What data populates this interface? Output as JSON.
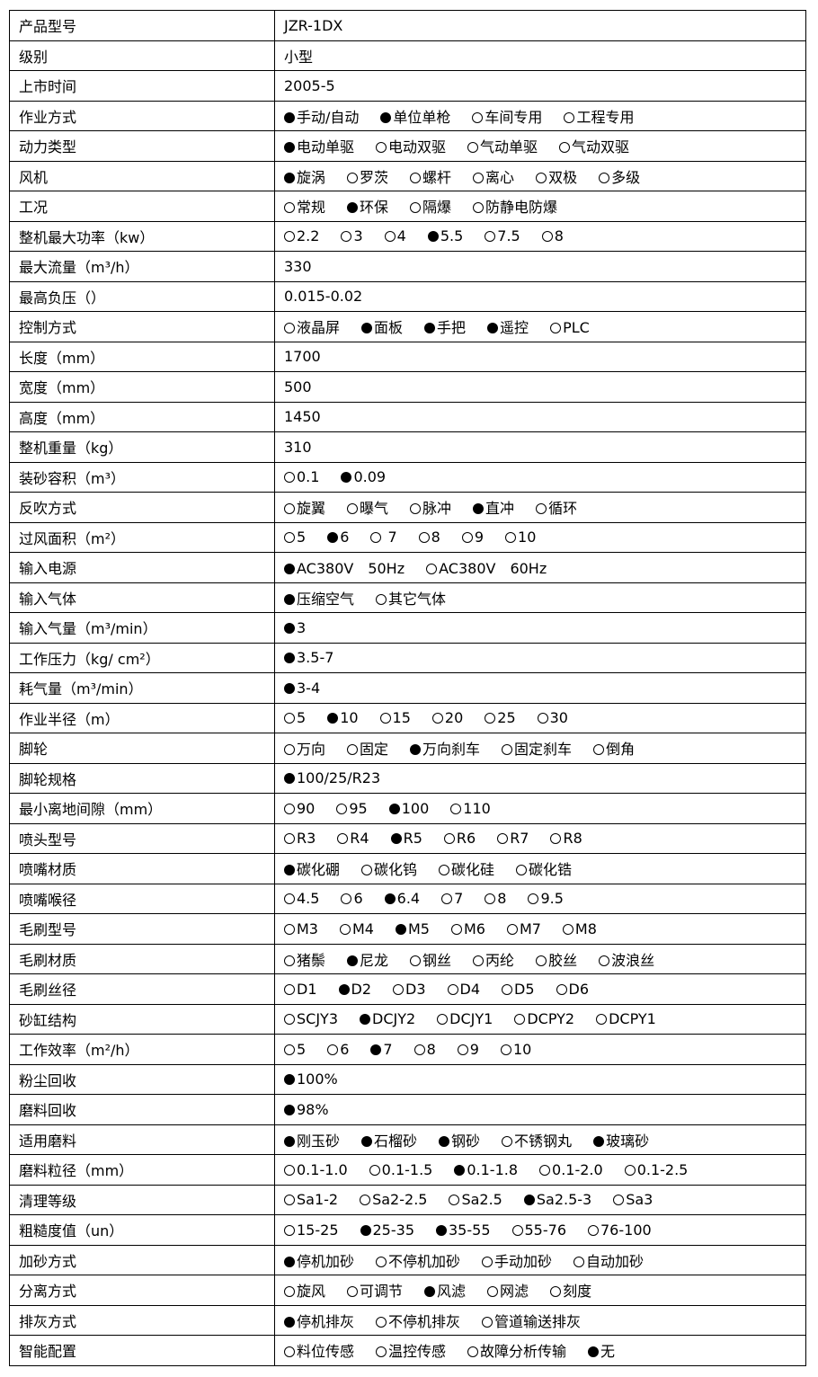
{
  "rows": [
    {
      "label": "产品型号",
      "value": "JZR-1DX"
    },
    {
      "label": "级别",
      "value": "小型"
    },
    {
      "label": "上市时间",
      "value": "2005-5"
    },
    {
      "label": "作业方式",
      "options": [
        {
          "t": "手动/自动",
          "on": true
        },
        {
          "t": "单位单枪",
          "on": true
        },
        {
          "t": "车间专用",
          "on": false
        },
        {
          "t": "工程专用",
          "on": false
        }
      ]
    },
    {
      "label": "动力类型",
      "options": [
        {
          "t": "电动单驱",
          "on": true
        },
        {
          "t": "电动双驱",
          "on": false
        },
        {
          "t": "气动单驱",
          "on": false
        },
        {
          "t": "气动双驱",
          "on": false
        }
      ]
    },
    {
      "label": "风机",
      "options": [
        {
          "t": "旋涡",
          "on": true
        },
        {
          "t": "罗茨",
          "on": false
        },
        {
          "t": "螺杆",
          "on": false
        },
        {
          "t": "离心",
          "on": false
        },
        {
          "t": "双极",
          "on": false
        },
        {
          "t": "多级",
          "on": false
        }
      ]
    },
    {
      "label": "工况",
      "options": [
        {
          "t": "常规",
          "on": false
        },
        {
          "t": "环保",
          "on": true
        },
        {
          "t": "隔爆",
          "on": false
        },
        {
          "t": "防静电防爆",
          "on": false
        }
      ]
    },
    {
      "label": "整机最大功率（kw）",
      "options": [
        {
          "t": "2.2",
          "on": false
        },
        {
          "t": "3",
          "on": false
        },
        {
          "t": "4",
          "on": false
        },
        {
          "t": "5.5",
          "on": true
        },
        {
          "t": "7.5",
          "on": false
        },
        {
          "t": "8",
          "on": false
        }
      ]
    },
    {
      "label": "最大流量（m³/h）",
      "value": "330"
    },
    {
      "label": "最高负压（）",
      "value": "0.015-0.02"
    },
    {
      "label": "控制方式",
      "options": [
        {
          "t": "液晶屏",
          "on": false
        },
        {
          "t": "面板",
          "on": true
        },
        {
          "t": "手把",
          "on": true
        },
        {
          "t": "遥控",
          "on": true
        },
        {
          "t": "PLC",
          "on": false
        }
      ]
    },
    {
      "label": "长度（mm）",
      "value": "1700"
    },
    {
      "label": "宽度（mm）",
      "value": "500"
    },
    {
      "label": "高度（mm）",
      "value": "1450"
    },
    {
      "label": "整机重量（kg）",
      "value": "310"
    },
    {
      "label": "装砂容积（m³）",
      "options": [
        {
          "t": "0.1",
          "on": false
        },
        {
          "t": "0.09",
          "on": true
        }
      ]
    },
    {
      "label": "反吹方式",
      "options": [
        {
          "t": "旋翼",
          "on": false
        },
        {
          "t": "曝气",
          "on": false
        },
        {
          "t": "脉冲",
          "on": false
        },
        {
          "t": "直冲",
          "on": true
        },
        {
          "t": "循环",
          "on": false
        }
      ]
    },
    {
      "label": "过风面积（m²）",
      "options": [
        {
          "t": "5",
          "on": false
        },
        {
          "t": "6",
          "on": true
        },
        {
          "t": " 7",
          "on": false
        },
        {
          "t": "8",
          "on": false
        },
        {
          "t": "9",
          "on": false
        },
        {
          "t": "10",
          "on": false
        }
      ]
    },
    {
      "label": "输入电源",
      "options": [
        {
          "t": "AC380V　50Hz",
          "on": true
        },
        {
          "t": "AC380V　60Hz",
          "on": false
        }
      ]
    },
    {
      "label": "输入气体",
      "options": [
        {
          "t": "压缩空气",
          "on": true
        },
        {
          "t": "其它气体",
          "on": false
        }
      ]
    },
    {
      "label": "输入气量（m³/min）",
      "options": [
        {
          "t": "3",
          "on": true
        }
      ]
    },
    {
      "label": "工作压力（kg/ cm²）",
      "options": [
        {
          "t": "3.5-7",
          "on": true
        }
      ]
    },
    {
      "label": "耗气量（m³/min）",
      "options": [
        {
          "t": "3-4",
          "on": true
        }
      ]
    },
    {
      "label": "作业半径（m）",
      "options": [
        {
          "t": "5",
          "on": false
        },
        {
          "t": "10",
          "on": true
        },
        {
          "t": "15",
          "on": false
        },
        {
          "t": "20",
          "on": false
        },
        {
          "t": "25",
          "on": false
        },
        {
          "t": "30",
          "on": false
        }
      ]
    },
    {
      "label": "脚轮",
      "options": [
        {
          "t": "万向",
          "on": false
        },
        {
          "t": "固定",
          "on": false
        },
        {
          "t": "万向刹车",
          "on": true
        },
        {
          "t": "固定刹车",
          "on": false
        },
        {
          "t": "倒角",
          "on": false
        }
      ]
    },
    {
      "label": "脚轮规格",
      "options": [
        {
          "t": "100/25/R23",
          "on": true
        }
      ]
    },
    {
      "label": "最小离地间隙（mm）",
      "options": [
        {
          "t": "90",
          "on": false
        },
        {
          "t": "95",
          "on": false
        },
        {
          "t": "100",
          "on": true
        },
        {
          "t": "110",
          "on": false
        }
      ]
    },
    {
      "label": "喷头型号",
      "options": [
        {
          "t": "R3",
          "on": false
        },
        {
          "t": "R4",
          "on": false
        },
        {
          "t": "R5",
          "on": true
        },
        {
          "t": "R6",
          "on": false
        },
        {
          "t": "R7",
          "on": false
        },
        {
          "t": "R8",
          "on": false
        }
      ]
    },
    {
      "label": "喷嘴材质",
      "options": [
        {
          "t": "碳化硼",
          "on": true
        },
        {
          "t": "碳化钨",
          "on": false
        },
        {
          "t": "碳化硅",
          "on": false
        },
        {
          "t": "碳化锆",
          "on": false
        }
      ]
    },
    {
      "label": "喷嘴喉径",
      "options": [
        {
          "t": "4.5",
          "on": false
        },
        {
          "t": "6",
          "on": false
        },
        {
          "t": "6.4",
          "on": true
        },
        {
          "t": "7",
          "on": false
        },
        {
          "t": "8",
          "on": false
        },
        {
          "t": "9.5",
          "on": false
        }
      ]
    },
    {
      "label": "毛刷型号",
      "options": [
        {
          "t": "M3",
          "on": false
        },
        {
          "t": "M4",
          "on": false
        },
        {
          "t": "M5",
          "on": true
        },
        {
          "t": "M6",
          "on": false
        },
        {
          "t": "M7",
          "on": false
        },
        {
          "t": "M8",
          "on": false
        }
      ]
    },
    {
      "label": "毛刷材质",
      "options": [
        {
          "t": "猪鬃",
          "on": false
        },
        {
          "t": "尼龙",
          "on": true
        },
        {
          "t": "钢丝",
          "on": false
        },
        {
          "t": "丙纶",
          "on": false
        },
        {
          "t": "胶丝",
          "on": false
        },
        {
          "t": "波浪丝",
          "on": false
        }
      ]
    },
    {
      "label": "毛刷丝径",
      "options": [
        {
          "t": "D1",
          "on": false
        },
        {
          "t": "D2",
          "on": true
        },
        {
          "t": "D3",
          "on": false
        },
        {
          "t": "D4",
          "on": false
        },
        {
          "t": "D5",
          "on": false
        },
        {
          "t": "D6",
          "on": false
        }
      ]
    },
    {
      "label": "砂缸结构",
      "options": [
        {
          "t": "SCJY3",
          "on": false
        },
        {
          "t": "DCJY2",
          "on": true
        },
        {
          "t": "DCJY1",
          "on": false
        },
        {
          "t": "DCPY2",
          "on": false
        },
        {
          "t": "DCPY1",
          "on": false
        }
      ]
    },
    {
      "label": "工作效率（m²/h）",
      "options": [
        {
          "t": "5",
          "on": false
        },
        {
          "t": "6",
          "on": false
        },
        {
          "t": "7",
          "on": true
        },
        {
          "t": "8",
          "on": false
        },
        {
          "t": "9",
          "on": false
        },
        {
          "t": "10",
          "on": false
        }
      ]
    },
    {
      "label": "粉尘回收",
      "options": [
        {
          "t": "100%",
          "on": true
        }
      ]
    },
    {
      "label": "磨料回收",
      "options": [
        {
          "t": "98%",
          "on": true
        }
      ]
    },
    {
      "label": "适用磨料",
      "options": [
        {
          "t": "刚玉砂",
          "on": true
        },
        {
          "t": "石榴砂",
          "on": true
        },
        {
          "t": "钢砂",
          "on": true
        },
        {
          "t": "不锈钢丸",
          "on": false
        },
        {
          "t": "玻璃砂",
          "on": true
        }
      ]
    },
    {
      "label": "磨料粒径（mm）",
      "options": [
        {
          "t": "0.1-1.0",
          "on": false
        },
        {
          "t": "0.1-1.5",
          "on": false
        },
        {
          "t": "0.1-1.8",
          "on": true
        },
        {
          "t": "0.1-2.0",
          "on": false
        },
        {
          "t": "0.1-2.5",
          "on": false
        }
      ]
    },
    {
      "label": "清理等级",
      "options": [
        {
          "t": "Sa1-2",
          "on": false
        },
        {
          "t": "Sa2-2.5",
          "on": false
        },
        {
          "t": "Sa2.5",
          "on": false
        },
        {
          "t": "Sa2.5-3",
          "on": true
        },
        {
          "t": "Sa3",
          "on": false
        }
      ]
    },
    {
      "label": "粗糙度值（un）",
      "options": [
        {
          "t": "15-25",
          "on": false
        },
        {
          "t": "25-35",
          "on": true
        },
        {
          "t": "35-55",
          "on": true
        },
        {
          "t": "55-76",
          "on": false
        },
        {
          "t": "76-100",
          "on": false
        }
      ]
    },
    {
      "label": "加砂方式",
      "options": [
        {
          "t": "停机加砂",
          "on": true
        },
        {
          "t": "不停机加砂",
          "on": false
        },
        {
          "t": "手动加砂",
          "on": false
        },
        {
          "t": "自动加砂",
          "on": false
        }
      ]
    },
    {
      "label": "分离方式",
      "options": [
        {
          "t": "旋风",
          "on": false
        },
        {
          "t": "可调节",
          "on": false
        },
        {
          "t": "风滤",
          "on": true
        },
        {
          "t": "网滤",
          "on": false
        },
        {
          "t": "刻度",
          "on": false
        }
      ]
    },
    {
      "label": "排灰方式",
      "options": [
        {
          "t": "停机排灰",
          "on": true
        },
        {
          "t": "不停机排灰",
          "on": false
        },
        {
          "t": "管道输送排灰",
          "on": false
        }
      ]
    },
    {
      "label": "智能配置",
      "options": [
        {
          "t": "料位传感",
          "on": false
        },
        {
          "t": "温控传感",
          "on": false
        },
        {
          "t": "故障分析传输",
          "on": false
        },
        {
          "t": "无",
          "on": true
        }
      ]
    }
  ]
}
